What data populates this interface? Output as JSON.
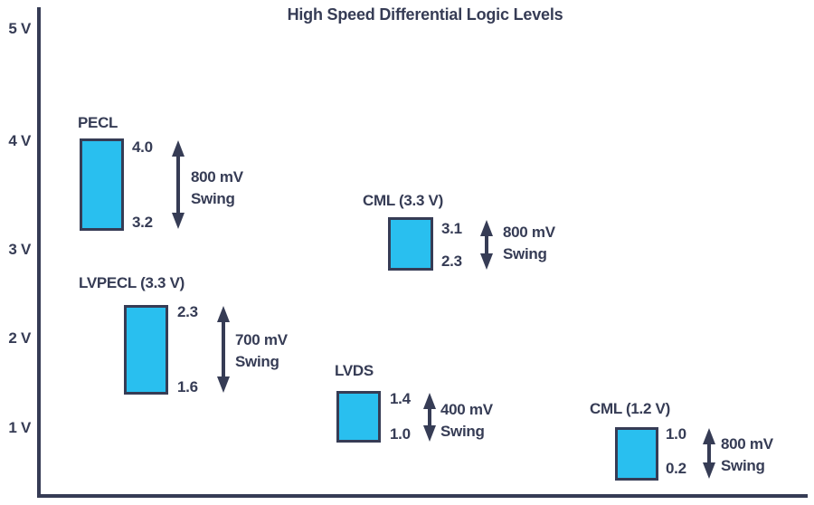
{
  "title": "High Speed Differential Logic Levels",
  "colors": {
    "ink": "#363C55",
    "bar_fill": "#29BFEF"
  },
  "y_axis": {
    "labels": [
      "5 V",
      "4 V",
      "3 V",
      "2 V",
      "1 V"
    ]
  },
  "groups": [
    {
      "name": "PECL",
      "high": "4.0",
      "low": "3.2",
      "swing_line1": "800 mV",
      "swing_line2": "Swing"
    },
    {
      "name": "LVPECL (3.3 V)",
      "high": "2.3",
      "low": "1.6",
      "swing_line1": "700 mV",
      "swing_line2": "Swing"
    },
    {
      "name": "CML (3.3 V)",
      "high": "3.1",
      "low": "2.3",
      "swing_line1": "800 mV",
      "swing_line2": "Swing"
    },
    {
      "name": "LVDS",
      "high": "1.4",
      "low": "1.0",
      "swing_line1": "400 mV",
      "swing_line2": "Swing"
    },
    {
      "name": "CML (1.2 V)",
      "high": "1.0",
      "low": "0.2",
      "swing_line1": "800 mV",
      "swing_line2": "Swing"
    }
  ],
  "chart_data": {
    "type": "bar",
    "subtype": "floating-range-bars",
    "title": "High Speed Differential Logic Levels",
    "y_ticks": [
      "5 V",
      "4 V",
      "3 V",
      "2 V",
      "1 V"
    ],
    "ylim": [
      0,
      5
    ],
    "grid": false,
    "legend": false,
    "series": [
      {
        "name": "PECL",
        "high_v": 4.0,
        "low_v": 3.2,
        "swing_mv": 800
      },
      {
        "name": "LVPECL (3.3 V)",
        "high_v": 2.3,
        "low_v": 1.6,
        "swing_mv": 700
      },
      {
        "name": "CML (3.3 V)",
        "high_v": 3.1,
        "low_v": 2.3,
        "swing_mv": 800
      },
      {
        "name": "LVDS",
        "high_v": 1.4,
        "low_v": 1.0,
        "swing_mv": 400
      },
      {
        "name": "CML (1.2 V)",
        "high_v": 1.0,
        "low_v": 0.2,
        "swing_mv": 800
      }
    ]
  }
}
